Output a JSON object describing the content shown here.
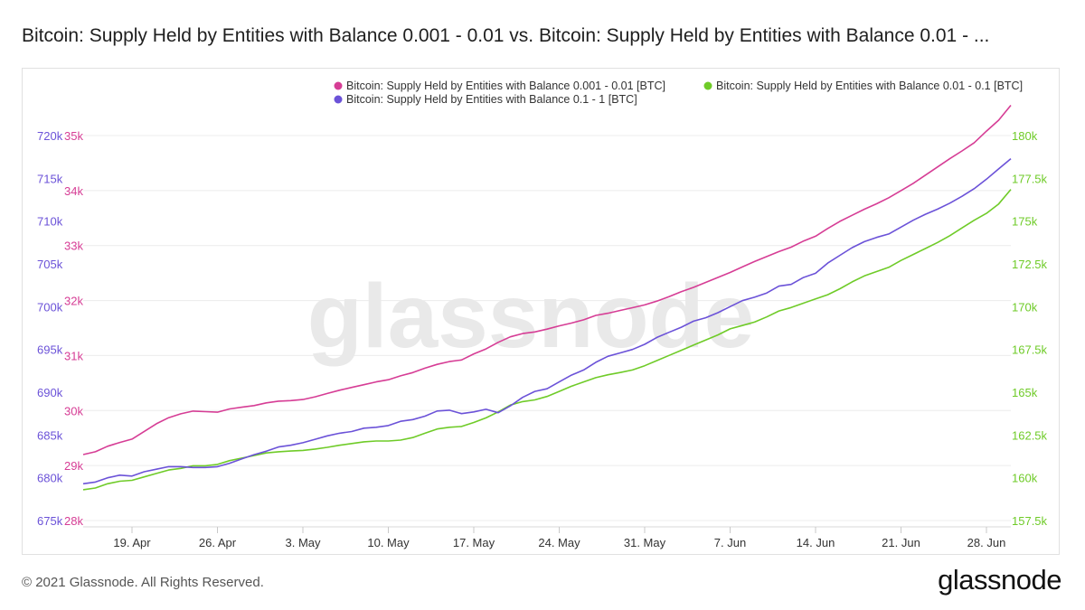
{
  "title": "Bitcoin: Supply Held by Entities with Balance 0.001 - 0.01 vs. Bitcoin: Supply Held by Entities with Balance 0.01 - ...",
  "footer": "© 2021 Glassnode. All Rights Reserved.",
  "brand": "glassnode",
  "watermark": "glassnode",
  "colors": {
    "pink": "#d63d95",
    "green": "#6fcb28",
    "purple": "#6b52d8",
    "grid": "#ececec",
    "watermark": "#e9e9e9"
  },
  "chart_data": {
    "type": "line",
    "x": [
      "Apr 15",
      "Apr 16",
      "Apr 17",
      "Apr 18",
      "Apr 19",
      "Apr 20",
      "Apr 21",
      "Apr 22",
      "Apr 23",
      "Apr 24",
      "Apr 25",
      "Apr 26",
      "Apr 27",
      "Apr 28",
      "Apr 29",
      "Apr 30",
      "May 1",
      "May 2",
      "May 3",
      "May 4",
      "May 5",
      "May 6",
      "May 7",
      "May 8",
      "May 9",
      "May 10",
      "May 11",
      "May 12",
      "May 13",
      "May 14",
      "May 15",
      "May 16",
      "May 17",
      "May 18",
      "May 19",
      "May 20",
      "May 21",
      "May 22",
      "May 23",
      "May 24",
      "May 25",
      "May 26",
      "May 27",
      "May 28",
      "May 29",
      "May 30",
      "May 31",
      "Jun 1",
      "Jun 2",
      "Jun 3",
      "Jun 4",
      "Jun 5",
      "Jun 6",
      "Jun 7",
      "Jun 8",
      "Jun 9",
      "Jun 10",
      "Jun 11",
      "Jun 12",
      "Jun 13",
      "Jun 14",
      "Jun 15",
      "Jun 16",
      "Jun 17",
      "Jun 18",
      "Jun 19",
      "Jun 20",
      "Jun 21",
      "Jun 22",
      "Jun 23",
      "Jun 24",
      "Jun 25",
      "Jun 26",
      "Jun 27",
      "Jun 28",
      "Jun 29",
      "Jun 30"
    ],
    "x_ticks": [
      "19. Apr",
      "26. Apr",
      "3. May",
      "10. May",
      "17. May",
      "24. May",
      "31. May",
      "7. Jun",
      "14. Jun",
      "21. Jun",
      "28. Jun"
    ],
    "x_tick_dates": [
      "Apr 19",
      "Apr 26",
      "May 3",
      "May 10",
      "May 17",
      "May 24",
      "May 31",
      "Jun 7",
      "Jun 14",
      "Jun 21",
      "Jun 28"
    ],
    "legend": [
      {
        "name": "Bitcoin: Supply Held by Entities with Balance 0.001 - 0.01 [BTC]",
        "color": "#d63d95"
      },
      {
        "name": "Bitcoin: Supply Held by Entities with Balance 0.01 - 0.1 [BTC]",
        "color": "#6fcb28"
      },
      {
        "name": "Bitcoin: Supply Held by Entities with Balance 0.1 - 1 [BTC]",
        "color": "#6b52d8"
      }
    ],
    "legend_position": "top-right",
    "grid": "horizontal",
    "axes": {
      "left_outer": {
        "color": "#6b52d8",
        "ylim": [
          675000,
          720000
        ],
        "ticks": [
          "675k",
          "680k",
          "685k",
          "690k",
          "695k",
          "700k",
          "705k",
          "710k",
          "715k",
          "720k"
        ]
      },
      "left_inner": {
        "color": "#d63d95",
        "ylim": [
          28000,
          35000
        ],
        "ticks": [
          "28k",
          "29k",
          "30k",
          "31k",
          "32k",
          "33k",
          "34k",
          "35k"
        ]
      },
      "right": {
        "color": "#6fcb28",
        "ylim": [
          157500,
          180000
        ],
        "ticks": [
          "157.5k",
          "160k",
          "162.5k",
          "165k",
          "167.5k",
          "170k",
          "172.5k",
          "175k",
          "177.5k",
          "180k"
        ]
      }
    },
    "series": [
      {
        "name": "Bitcoin: Supply Held by Entities with Balance 0.001 - 0.01 [BTC]",
        "axis": "left_inner",
        "color": "#d63d95",
        "values": [
          29200,
          29250,
          29350,
          29420,
          29480,
          29620,
          29760,
          29870,
          29940,
          29990,
          29980,
          29970,
          30030,
          30060,
          30090,
          30140,
          30170,
          30180,
          30200,
          30250,
          30310,
          30370,
          30420,
          30470,
          30520,
          30560,
          30630,
          30690,
          30770,
          30840,
          30890,
          30920,
          31030,
          31120,
          31240,
          31340,
          31400,
          31430,
          31480,
          31540,
          31590,
          31650,
          31730,
          31770,
          31820,
          31870,
          31920,
          31990,
          32070,
          32160,
          32240,
          32330,
          32420,
          32510,
          32610,
          32710,
          32800,
          32890,
          32970,
          33080,
          33170,
          33310,
          33440,
          33550,
          33660,
          33760,
          33870,
          34000,
          34130,
          34280,
          34430,
          34580,
          34720,
          34870,
          35080,
          35280,
          35550
        ]
      },
      {
        "name": "Bitcoin: Supply Held by Entities with Balance 0.01 - 0.1 [BTC]",
        "axis": "right",
        "color": "#6fcb28",
        "values": [
          159300,
          159400,
          159650,
          159800,
          159850,
          160050,
          160250,
          160450,
          160550,
          160700,
          160700,
          160780,
          161000,
          161150,
          161300,
          161450,
          161520,
          161560,
          161600,
          161680,
          161780,
          161900,
          162000,
          162100,
          162150,
          162150,
          162200,
          162350,
          162600,
          162850,
          162950,
          163000,
          163230,
          163500,
          163850,
          164250,
          164450,
          164550,
          164750,
          165050,
          165350,
          165600,
          165850,
          166020,
          166150,
          166300,
          166550,
          166850,
          167150,
          167450,
          167750,
          168050,
          168350,
          168700,
          168900,
          169100,
          169400,
          169750,
          169950,
          170200,
          170450,
          170700,
          171050,
          171450,
          171800,
          172050,
          172300,
          172700,
          173050,
          173400,
          173750,
          174150,
          174600,
          175050,
          175450,
          176000,
          176850
        ]
      },
      {
        "name": "Bitcoin: Supply Held by Entities with Balance 0.1 - 1 [BTC]",
        "axis": "left_outer",
        "color": "#6b52d8",
        "values": [
          679300,
          679500,
          680000,
          680300,
          680200,
          680700,
          681000,
          681300,
          681300,
          681200,
          681200,
          681300,
          681700,
          682200,
          682700,
          683100,
          683600,
          683800,
          684100,
          684500,
          684900,
          685200,
          685400,
          685800,
          685900,
          686100,
          686600,
          686800,
          687200,
          687800,
          687900,
          687500,
          687700,
          688000,
          687600,
          688400,
          689400,
          690100,
          690400,
          691200,
          692000,
          692600,
          693500,
          694200,
          694600,
          695000,
          695600,
          696400,
          697000,
          697600,
          698300,
          698700,
          699300,
          700000,
          700700,
          701100,
          701600,
          702400,
          702600,
          703400,
          703900,
          705100,
          706000,
          706900,
          707600,
          708100,
          708500,
          709300,
          710100,
          710800,
          711400,
          712100,
          712900,
          713800,
          714900,
          716100,
          717300
        ]
      }
    ]
  }
}
